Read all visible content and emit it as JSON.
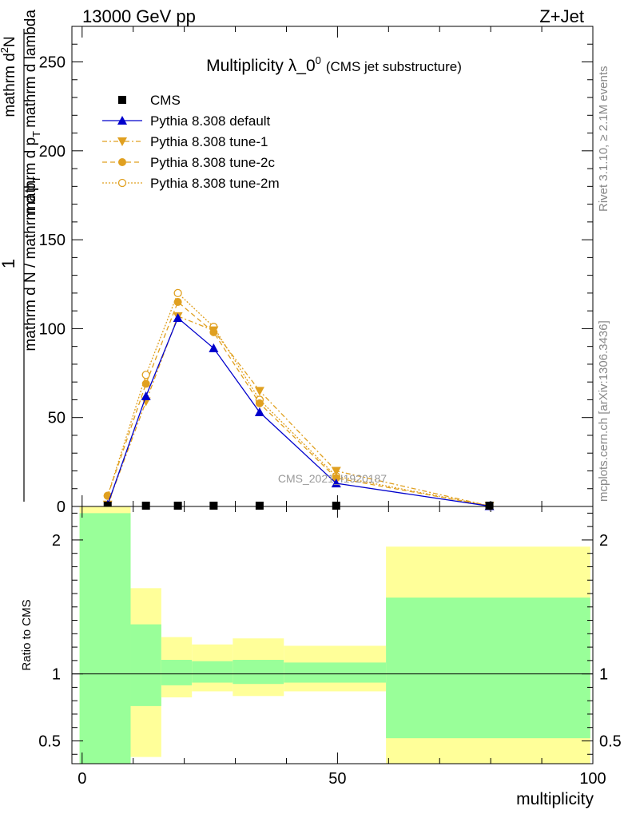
{
  "header": {
    "left": "13000 GeV pp",
    "right": "Z+Jet"
  },
  "side_labels": {
    "rivet": "Rivet 3.1.10, ≥ 2.1M events",
    "mcplots": "mcplots.cern.ch [arXiv:1306.3436]"
  },
  "watermark": "CMS_2021_I1920187",
  "colors": {
    "data": "#000000",
    "default": "#0000cc",
    "tune": "#e0a020",
    "band_inner": "#99ff99",
    "band_outer": "#ffff99"
  },
  "chart_data": [
    {
      "type": "line",
      "title_main": "Multiplicity λ_0",
      "title_sup": "0",
      "title_suffix": "(CMS jet substructure)",
      "ylabel_top": "1",
      "ylabel_main": "mathrm d N / mathrm d p",
      "ylabel_sub": "T",
      "ylabel_fraction": "mathrm d²N / mathrm d p_T mathrm d lambda",
      "ylabel_line1": "mathrm d",
      "ylabel_line1_sup": "2",
      "ylabel_line1_rest": "N",
      "ylabel_den": "mathrm d p",
      "ylabel_den_sub": "T",
      "ylabel_den_rest": "mathrm d lambda",
      "ylim": [
        0,
        270
      ],
      "yticks": [
        0,
        50,
        100,
        150,
        200,
        250
      ],
      "xlim": [
        -2,
        100
      ],
      "legend_position": "top-left",
      "series": [
        {
          "name": "CMS",
          "style": "data",
          "x": [
            5,
            12.5,
            18.75,
            25.75,
            34.75,
            49.75,
            79.75
          ],
          "y": [
            0.3,
            0.3,
            0.3,
            0.3,
            0.3,
            0.3,
            0.3
          ]
        },
        {
          "name": "Pythia 8.308 default",
          "style": "default",
          "x": [
            5,
            12.5,
            18.75,
            25.75,
            34.75,
            49.75,
            79.75
          ],
          "y": [
            1,
            62,
            106,
            89,
            53,
            13,
            0.2
          ]
        },
        {
          "name": "Pythia 8.308 tune-1",
          "style": "tune1",
          "x": [
            5,
            12.5,
            18.75,
            25.75,
            34.75,
            49.75,
            79.75
          ],
          "y": [
            1,
            59,
            107,
            99,
            65,
            20,
            0.3
          ]
        },
        {
          "name": "Pythia 8.308 tune-2c",
          "style": "tune2c",
          "x": [
            5,
            12.5,
            18.75,
            25.75,
            34.75,
            49.75,
            79.75
          ],
          "y": [
            6,
            69,
            115,
            98,
            58,
            16,
            0.3
          ]
        },
        {
          "name": "Pythia 8.308 tune-2m",
          "style": "tune2m",
          "x": [
            5,
            12.5,
            18.75,
            25.75,
            34.75,
            49.75,
            79.75
          ],
          "y": [
            6,
            74,
            120,
            101,
            60,
            17,
            0.3
          ]
        }
      ]
    },
    {
      "type": "area",
      "ylabel": "Ratio to CMS",
      "xlabel": "multiplicity",
      "xlim": [
        -2,
        100
      ],
      "xticks": [
        0,
        50,
        100
      ],
      "ylim": [
        0.33,
        2.25
      ],
      "yticks": [
        0.5,
        1,
        2
      ],
      "reference_line": 1,
      "bins": [
        {
          "x0": -0.5,
          "x1": 9.5,
          "inner": [
            0.33,
            2.2
          ],
          "outer": [
            0.33,
            2.3
          ]
        },
        {
          "x0": 9.5,
          "x1": 15.5,
          "inner": [
            0.76,
            1.37
          ],
          "outer": [
            0.38,
            1.64
          ]
        },
        {
          "x0": 15.5,
          "x1": 21.5,
          "inner": [
            0.915,
            1.105
          ],
          "outer": [
            0.825,
            1.275
          ]
        },
        {
          "x0": 21.5,
          "x1": 29.5,
          "inner": [
            0.935,
            1.095
          ],
          "outer": [
            0.87,
            1.22
          ]
        },
        {
          "x0": 29.5,
          "x1": 39.5,
          "inner": [
            0.925,
            1.105
          ],
          "outer": [
            0.835,
            1.265
          ]
        },
        {
          "x0": 39.5,
          "x1": 59.5,
          "inner": [
            0.935,
            1.085
          ],
          "outer": [
            0.87,
            1.21
          ]
        },
        {
          "x0": 59.5,
          "x1": 99.5,
          "inner": [
            0.52,
            1.57
          ],
          "outer": [
            0.33,
            1.95
          ]
        }
      ]
    }
  ]
}
